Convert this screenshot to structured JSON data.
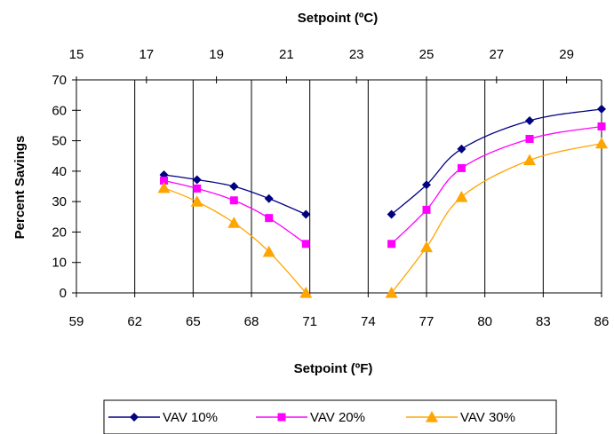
{
  "chart_data": {
    "type": "line",
    "top_axis_title": "Setpoint (ºC)",
    "bottom_axis_title": "Setpoint (ºF)",
    "ylabel": "Percent Savings",
    "ylim": [
      0,
      70
    ],
    "y_ticks": [
      0,
      10,
      20,
      30,
      40,
      50,
      60,
      70
    ],
    "xlim_f": [
      59,
      86
    ],
    "x_ticks_f": [
      "59",
      "62",
      "65",
      "68",
      "71",
      "74",
      "77",
      "80",
      "83",
      "86"
    ],
    "x_ticks_c": [
      "15",
      "17",
      "19",
      "21",
      "23",
      "25",
      "27",
      "29"
    ],
    "grid": "vertical major gridlines",
    "legend_position": "bottom",
    "series": [
      {
        "name": "VAV 10%",
        "color": "#000080",
        "marker": "diamond",
        "segments": [
          [
            [
              63.5,
              38.8
            ],
            [
              65.2,
              37.2
            ],
            [
              67.1,
              35.0
            ],
            [
              68.9,
              31.0
            ],
            [
              70.8,
              25.8
            ]
          ],
          [
            [
              75.2,
              25.8
            ],
            [
              77.0,
              35.5
            ],
            [
              78.8,
              47.3
            ],
            [
              82.3,
              56.6
            ],
            [
              86.0,
              60.4
            ]
          ]
        ]
      },
      {
        "name": "VAV 20%",
        "color": "#FF00FF",
        "marker": "square",
        "segments": [
          [
            [
              63.5,
              36.9
            ],
            [
              65.2,
              34.3
            ],
            [
              67.1,
              30.4
            ],
            [
              68.9,
              24.6
            ],
            [
              70.8,
              16.1
            ]
          ],
          [
            [
              75.2,
              16.1
            ],
            [
              77.0,
              27.3
            ],
            [
              78.8,
              41.0
            ],
            [
              82.3,
              50.6
            ],
            [
              86.0,
              54.7
            ]
          ]
        ]
      },
      {
        "name": "VAV 30%",
        "color": "#FFA500",
        "marker": "triangle",
        "segments": [
          [
            [
              63.5,
              34.5
            ],
            [
              65.2,
              30.0
            ],
            [
              67.1,
              23.0
            ],
            [
              68.9,
              13.5
            ],
            [
              70.8,
              0.0
            ]
          ],
          [
            [
              75.2,
              0.0
            ],
            [
              77.0,
              15.0
            ],
            [
              78.8,
              31.5
            ],
            [
              82.3,
              43.6
            ],
            [
              86.0,
              49.1
            ]
          ]
        ]
      }
    ]
  }
}
